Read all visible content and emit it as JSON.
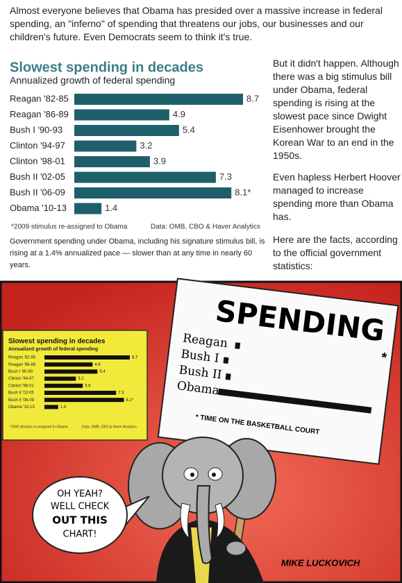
{
  "intro": "Almost everyone believes that Obama has presided over a massive increase in federal spending, an \"inferno\" of spending that threatens our jobs, our businesses and our children's future. Even Democrats seem to think it's true.",
  "chart": {
    "type": "bar",
    "title": "Slowest spending in decades",
    "subtitle": "Annualized growth of federal spending",
    "categories": [
      "Reagan '82-85",
      "Reagan '86-89",
      "Bush I '90-93",
      "Clinton '94-97",
      "Clinton '98-01",
      "Bush II '02-05",
      "Bush II '06-09",
      "Obama '10-13"
    ],
    "values": [
      8.7,
      4.9,
      5.4,
      3.2,
      3.9,
      7.3,
      8.1,
      1.4
    ],
    "value_labels": [
      "8.7",
      "4.9",
      "5.4",
      "3.2",
      "3.9",
      "7.3",
      "8.1*",
      "1.4"
    ],
    "color": "#1f5f6a",
    "footnote": "*2009 stimulus re-assigned to Obama",
    "source": "Data: OMB, CBO & Haver Analytics",
    "caption": "Government spending under Obama, including his signature stimulus bill, is rising at a 1.4% annualized pace — slower than at any time in nearly 60 years."
  },
  "sidebar": [
    "But it didn't happen. Although there was a big stimulus bill under Obama, federal spending is rising at the slowest pace since Dwight Eisenhower brought the Korean War to an end in the 1950s.",
    "Even hapless Herbert Hoover managed to increase spending more than Obama has.",
    "Here are the facts, according to the official government statistics:"
  ],
  "cartoon": {
    "sign_title": "SPENDING",
    "sign_rows": [
      "Reagan",
      "Bush I",
      "Bush II",
      "Obama"
    ],
    "sign_footnote": "* TIME ON THE BASKETBALL COURT",
    "speech": [
      "OH YEAH?",
      "WELL CHECK",
      "OUT THIS",
      "CHART!"
    ],
    "signature": "MIKE LUCKOVICH"
  }
}
